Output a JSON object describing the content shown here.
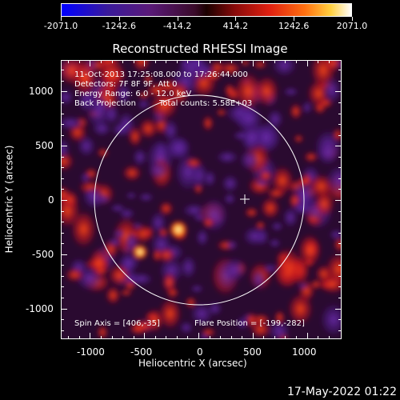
{
  "colorbar": {
    "labels": [
      "-2071.0",
      "-1242.6",
      "-414.2",
      "414.2",
      "1242.6",
      "2071.0"
    ]
  },
  "title": "Reconstructed RHESSI Image",
  "info": {
    "line1": "11-Oct-2013 17:25:08.000 to 17:26:44.000",
    "line2": "Detectors: 7F 8F 9F, Att 0",
    "line3": "Energy Range: 6.0 - 12.0 keV",
    "line4_left": "Back Projection",
    "line4_right": "Total counts: 5.58E+03"
  },
  "spin_axis": "Spin Axis = [406,-35]",
  "flare_position": "Flare Position = [-199,-282]",
  "axes": {
    "xlabel": "Heliocentric X (arcsec)",
    "ylabel": "Heliocentric Y (arcsec)",
    "xticks": [
      "-1000",
      "-500",
      "0",
      "500",
      "1000"
    ],
    "yticks": [
      "1000",
      "500",
      "0",
      "-500",
      "-1000"
    ]
  },
  "footer": "17-May-2022 01:22",
  "colors": {
    "accent": "#ffffff",
    "background": "#000000"
  }
}
